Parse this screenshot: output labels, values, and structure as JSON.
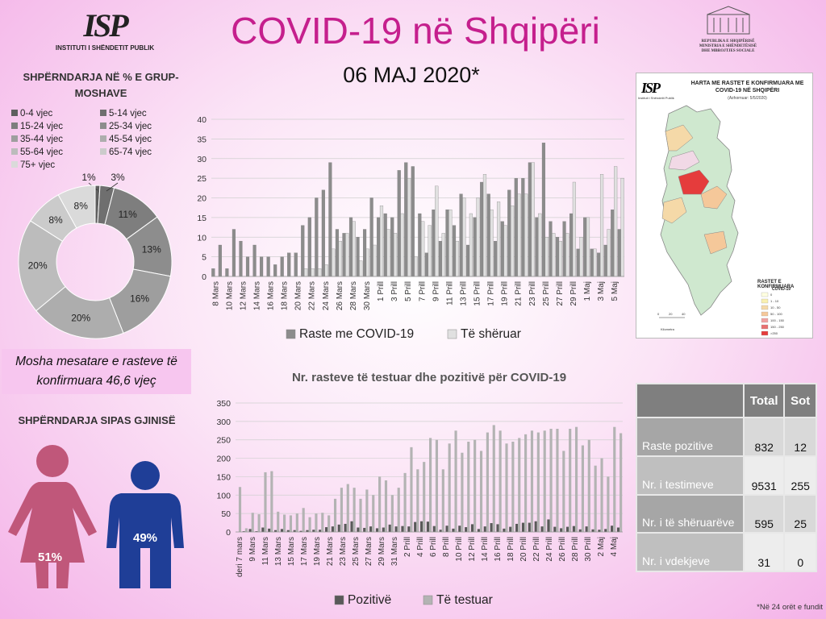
{
  "header": {
    "title": "COVID-19 në Shqipëri",
    "date": "06 MAJ 2020*",
    "logo_mark": "ISP",
    "logo_name": "INSTITUTI I SHËNDETIT PUBLIK",
    "ministry_lines": [
      "REPUBLIKA E SHQIPËRISË",
      "MINISTRIA E SHËNDETËSISË",
      "DHE MBROJTJES SOCIALE"
    ]
  },
  "age": {
    "title": "SHPËRNDARJA NË % E GRUP-MOSHAVE",
    "mean_text": "Mosha mesatare e rasteve të konfirmuara 46,6 vjeç"
  },
  "gender": {
    "title": "SHPËRNDARJA SIPAS GJINISË",
    "female_value": 51,
    "female_label": "51%",
    "male_value": 49,
    "male_label": "49%",
    "female_color": "#c0577a",
    "male_color": "#1f3e97"
  },
  "map": {
    "title": "HARTA ME RASTET E KONFIRMUARA ME COVID-19 NË SHQIPËRI",
    "subtitle": "(Azhornuar: 5/5/2020)",
    "legend_title": "RASTET E KONFIRMUARA",
    "legend_sub": "COVID-19",
    "logo": "ISP",
    "logo_name": "Instituti i Shëndetit Publik",
    "scale": "Kilometra"
  },
  "table": {
    "headers": [
      "",
      "Total",
      "Sot"
    ],
    "rows": [
      {
        "label": "Raste pozitive",
        "total": "832",
        "today": "12"
      },
      {
        "label": "Nr. i testimeve",
        "total": "9531",
        "today": "255"
      },
      {
        "label": "Nr. i të shëruarëve",
        "total": "595",
        "today": "25"
      },
      {
        "label": "Nr. i vdekjeve",
        "total": "31",
        "today": "0"
      }
    ]
  },
  "footnote": "*Në 24 orët e fundit",
  "chart_data": [
    {
      "type": "pie",
      "title": "SHPËRNDARJA NË % E GRUP-MOSHAVE",
      "legend_position": "top",
      "categories": [
        "0-4 vjec",
        "5-14 vjec",
        "15-24 vjec",
        "25-34 vjec",
        "35-44 vjec",
        "45-54 vjec",
        "55-64 vjec",
        "65-74 vjec",
        "75+ vjec"
      ],
      "values": [
        1,
        3,
        11,
        13,
        16,
        20,
        20,
        8,
        8
      ],
      "labels": [
        "1%",
        "3%",
        "11%",
        "13%",
        "16%",
        "20%",
        "20%",
        "8%",
        "8%"
      ],
      "colors": [
        "#5e5e5e",
        "#6f6f6f",
        "#7e7e7e",
        "#8d8d8d",
        "#9e9e9e",
        "#adadad",
        "#bcbcbc",
        "#cbcbcb",
        "#dadada"
      ]
    },
    {
      "type": "bar",
      "title": "",
      "legend_position": "bottom",
      "ylim": [
        0,
        40
      ],
      "yticks": [
        0,
        5,
        10,
        15,
        20,
        25,
        30,
        35,
        40
      ],
      "grid": true,
      "tick_labels": [
        "8 Mars",
        "10 Mars",
        "12 Mars",
        "14 Mars",
        "16 Mars",
        "18 Mars",
        "20 Mars",
        "22 Mars",
        "24 Mars",
        "26 Mars",
        "28 Mars",
        "30 Mars",
        "1 Prill",
        "3 Prill",
        "5 Prill",
        "7 Prill",
        "9 Prill",
        "11 Prill",
        "13 Prill",
        "15 Prill",
        "17 Prill",
        "19 Prill",
        "21 Prill",
        "23 Prill",
        "25 Prill",
        "27 Prill",
        "29 Prill",
        "1 Maj",
        "3 Maj",
        "5 Maj"
      ],
      "series": [
        {
          "name": "Raste me COVID-19",
          "color": "#8c8c8c",
          "values": [
            2,
            8,
            2,
            12,
            9,
            5,
            8,
            5,
            5,
            3,
            5,
            6,
            6,
            13,
            15,
            20,
            22,
            29,
            12,
            11,
            15,
            10,
            12,
            20,
            15,
            16,
            15,
            27,
            29,
            28,
            16,
            6,
            17,
            9,
            17,
            13,
            21,
            8,
            15,
            24,
            21,
            9,
            14,
            22,
            25,
            25,
            29,
            15,
            34,
            14,
            10,
            14,
            16,
            7,
            15,
            7,
            6,
            8,
            17,
            12
          ]
        },
        {
          "name": "Të shëruar",
          "color": "#e0e0e0",
          "values": [
            0,
            0,
            0,
            0,
            0,
            0,
            0,
            0,
            0,
            0,
            0,
            0,
            0,
            2,
            2,
            2,
            3,
            7,
            9,
            11,
            14,
            4,
            7,
            8,
            18,
            12,
            11,
            16,
            25,
            5,
            14,
            13,
            23,
            11,
            17,
            9,
            20,
            16,
            20,
            26,
            17,
            19,
            13,
            18,
            21,
            21,
            29,
            16,
            10,
            11,
            9,
            11,
            24,
            10,
            15,
            7,
            26,
            12,
            28,
            25
          ]
        }
      ]
    },
    {
      "type": "bar",
      "title": "Nr. rasteve të testuar dhe pozitivë për COVID-19",
      "legend_position": "bottom",
      "ylim": [
        0,
        350
      ],
      "yticks": [
        0,
        50,
        100,
        150,
        200,
        250,
        300,
        350
      ],
      "grid": true,
      "tick_labels": [
        "deri 7 mars",
        "9 Mars",
        "11 Mars",
        "13 Mars",
        "15 Mars",
        "17 Mars",
        "19 Mars",
        "21 Mars",
        "23 Mars",
        "25 Mars",
        "27 Mars",
        "29 Mars",
        "31 Mars",
        "2 Prill",
        "4 Prill",
        "6 Prill",
        "8 Prill",
        "10 Prill",
        "12 Prill",
        "14 Prill",
        "16 Prill",
        "18 Prill",
        "20 Prill",
        "22 Prill",
        "24 Prill",
        "26 Prill",
        "28 Prill",
        "30 Prill",
        "2 Maj",
        "4 Maj"
      ],
      "series": [
        {
          "name": "Pozitivë",
          "color": "#595959",
          "values": [
            0,
            2,
            8,
            2,
            12,
            9,
            5,
            8,
            5,
            5,
            3,
            5,
            6,
            6,
            13,
            15,
            20,
            22,
            29,
            12,
            11,
            15,
            10,
            12,
            20,
            15,
            16,
            15,
            27,
            29,
            28,
            16,
            6,
            17,
            9,
            17,
            13,
            21,
            8,
            15,
            24,
            21,
            9,
            14,
            22,
            25,
            25,
            29,
            15,
            34,
            14,
            10,
            14,
            16,
            7,
            15,
            7,
            6,
            8,
            17,
            12
          ]
        },
        {
          "name": "Të testuar",
          "color": "#b3b3b3",
          "values": [
            122,
            10,
            52,
            48,
            162,
            165,
            55,
            47,
            45,
            50,
            65,
            40,
            50,
            52,
            45,
            90,
            120,
            130,
            120,
            90,
            115,
            100,
            150,
            140,
            100,
            120,
            160,
            230,
            170,
            190,
            255,
            250,
            170,
            240,
            275,
            215,
            245,
            250,
            220,
            270,
            290,
            275,
            240,
            245,
            255,
            265,
            275,
            270,
            275,
            280,
            280,
            220,
            280,
            285,
            235,
            250,
            180,
            200,
            150,
            285,
            268
          ]
        }
      ]
    }
  ]
}
